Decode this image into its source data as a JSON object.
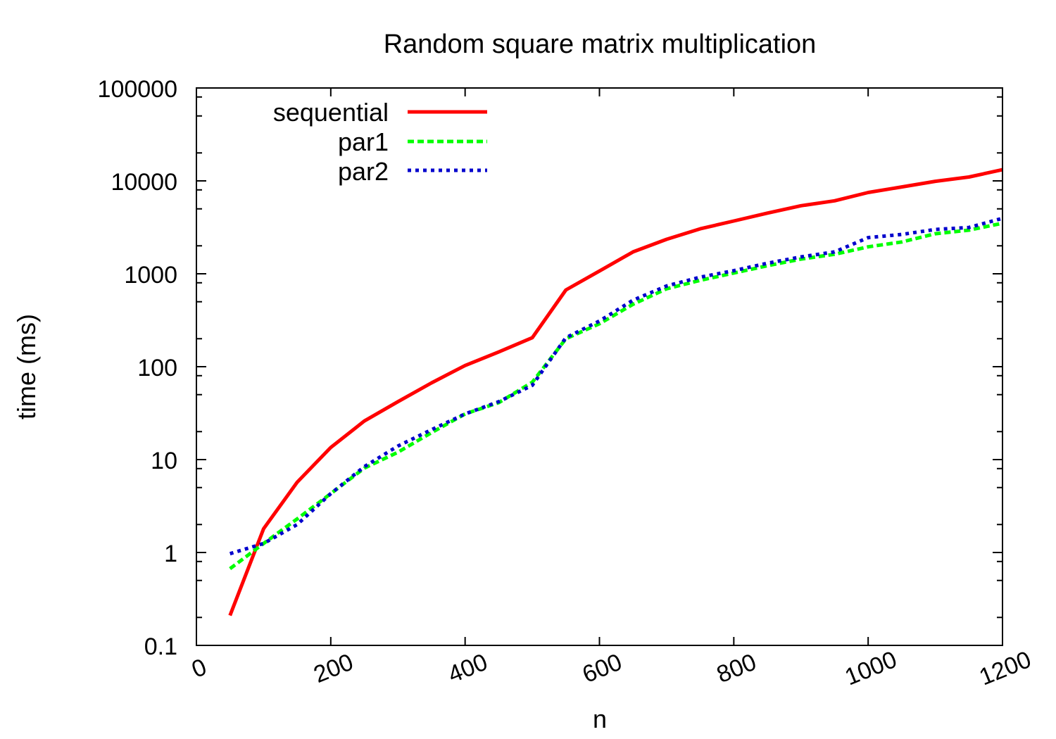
{
  "chart_data": {
    "type": "line",
    "title": "Random square matrix multiplication",
    "xlabel": "n",
    "ylabel": "time (ms)",
    "xlim": [
      0,
      1200
    ],
    "ylim": [
      0.1,
      100000
    ],
    "yscale": "log",
    "xticks": [
      0,
      200,
      400,
      600,
      800,
      1000,
      1200
    ],
    "xtick_labels": [
      "0",
      "200",
      "400",
      "600",
      "800",
      "1000",
      "1200"
    ],
    "yticks": [
      0.1,
      1,
      10,
      100,
      1000,
      10000,
      100000
    ],
    "ytick_labels": [
      "0.1",
      "1",
      "10",
      "100",
      "1000",
      "10000",
      "100000"
    ],
    "grid": false,
    "legend_position": "top-left",
    "x": [
      50,
      100,
      150,
      200,
      250,
      300,
      350,
      400,
      450,
      500,
      550,
      600,
      650,
      700,
      750,
      800,
      850,
      900,
      950,
      1000,
      1050,
      1100,
      1150,
      1200
    ],
    "series": [
      {
        "name": "sequential",
        "color": "#ff0000",
        "style": "solid",
        "values": [
          0.21,
          1.8,
          5.7,
          13.5,
          26,
          42,
          67,
          103,
          144,
          205,
          670,
          1070,
          1720,
          2350,
          3050,
          3700,
          4500,
          5400,
          6100,
          7500,
          8600,
          9900,
          11000,
          13200
        ]
      },
      {
        "name": "par1",
        "color": "#00ff00",
        "style": "dashed",
        "values": [
          0.67,
          1.25,
          2.3,
          4.3,
          8.1,
          12,
          19.5,
          31,
          41,
          68,
          200,
          290,
          470,
          690,
          850,
          1020,
          1220,
          1440,
          1620,
          1950,
          2200,
          2700,
          2950,
          3500
        ]
      },
      {
        "name": "par2",
        "color": "#0000cc",
        "style": "dotted",
        "values": [
          0.97,
          1.25,
          2.0,
          4.3,
          8.4,
          14,
          21,
          31,
          42,
          63,
          205,
          310,
          520,
          740,
          920,
          1080,
          1300,
          1520,
          1720,
          2450,
          2650,
          3000,
          3150,
          3950
        ]
      }
    ]
  }
}
